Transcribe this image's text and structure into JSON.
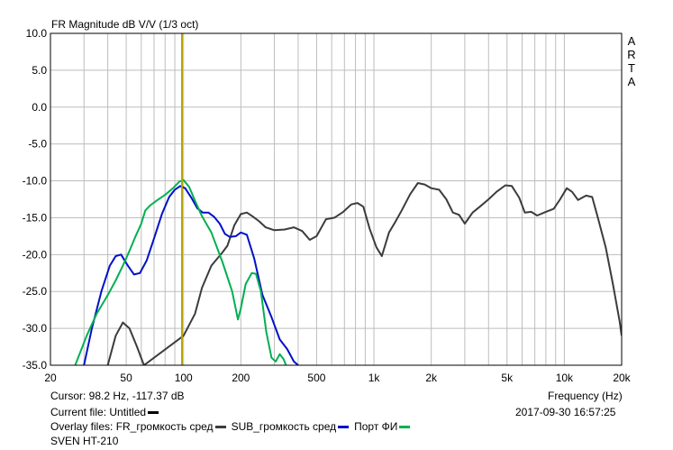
{
  "colors": {
    "background": "#ffffff",
    "grid": "#bdbdbd",
    "frame": "#000000",
    "cursor": "#b3a300",
    "series_black": "#3c3c3c",
    "series_blue": "#0010c8",
    "series_green": "#00b050"
  },
  "chart_data": {
    "type": "line",
    "title": "FR Magnitude dB V/V (1/3 oct)",
    "xlabel": "Frequency (Hz)",
    "ylabel": "",
    "xscale": "log",
    "xlim": [
      20,
      20000
    ],
    "ylim": [
      -35,
      10
    ],
    "y_ticks": [
      "10.0",
      "5.0",
      "0.0",
      "-5.0",
      "-10.0",
      "-15.0",
      "-20.0",
      "-25.0",
      "-30.0",
      "-35.0"
    ],
    "x_ticks": [
      {
        "v": 20,
        "label": "20"
      },
      {
        "v": 50,
        "label": "50"
      },
      {
        "v": 100,
        "label": "100"
      },
      {
        "v": 200,
        "label": "200"
      },
      {
        "v": 500,
        "label": "500"
      },
      {
        "v": 1000,
        "label": "1k"
      },
      {
        "v": 2000,
        "label": "2k"
      },
      {
        "v": 5000,
        "label": "5k"
      },
      {
        "v": 10000,
        "label": "10k"
      },
      {
        "v": 20000,
        "label": "20k"
      }
    ],
    "grid": true,
    "watermark": [
      "A",
      "R",
      "T",
      "A"
    ],
    "cursor_freq": 98.2,
    "series": [
      {
        "colorKey": "series_black",
        "points": [
          [
            40,
            -35
          ],
          [
            44,
            -31
          ],
          [
            48,
            -29.2
          ],
          [
            52,
            -30
          ],
          [
            57,
            -32.5
          ],
          [
            62,
            -35
          ],
          [
            100,
            -31
          ],
          [
            115,
            -28
          ],
          [
            125,
            -24.5
          ],
          [
            140,
            -21.5
          ],
          [
            160,
            -19.7
          ],
          [
            170,
            -18.8
          ],
          [
            185,
            -16
          ],
          [
            200,
            -14.5
          ],
          [
            215,
            -14.3
          ],
          [
            230,
            -14.8
          ],
          [
            250,
            -15.5
          ],
          [
            270,
            -16.3
          ],
          [
            300,
            -16.7
          ],
          [
            340,
            -16.6
          ],
          [
            380,
            -16.3
          ],
          [
            420,
            -16.8
          ],
          [
            460,
            -18
          ],
          [
            500,
            -17.5
          ],
          [
            560,
            -15.2
          ],
          [
            620,
            -15
          ],
          [
            690,
            -14.2
          ],
          [
            760,
            -13.2
          ],
          [
            820,
            -13
          ],
          [
            880,
            -13.5
          ],
          [
            950,
            -16.5
          ],
          [
            1030,
            -19
          ],
          [
            1100,
            -20.2
          ],
          [
            1200,
            -17
          ],
          [
            1300,
            -15.5
          ],
          [
            1400,
            -14
          ],
          [
            1550,
            -11.8
          ],
          [
            1700,
            -10.3
          ],
          [
            1850,
            -10.5
          ],
          [
            2000,
            -11
          ],
          [
            2200,
            -11.2
          ],
          [
            2400,
            -12.5
          ],
          [
            2600,
            -14.3
          ],
          [
            2800,
            -14.6
          ],
          [
            3000,
            -15.8
          ],
          [
            3300,
            -14.3
          ],
          [
            3600,
            -13.5
          ],
          [
            4000,
            -12.5
          ],
          [
            4400,
            -11.5
          ],
          [
            4900,
            -10.6
          ],
          [
            5300,
            -10.7
          ],
          [
            5800,
            -12.3
          ],
          [
            6200,
            -14.3
          ],
          [
            6700,
            -14.2
          ],
          [
            7200,
            -14.7
          ],
          [
            8000,
            -14.2
          ],
          [
            8800,
            -13.8
          ],
          [
            9500,
            -12.5
          ],
          [
            10300,
            -11
          ],
          [
            11000,
            -11.5
          ],
          [
            11800,
            -12.6
          ],
          [
            13000,
            -12
          ],
          [
            14000,
            -12.2
          ],
          [
            15000,
            -15
          ],
          [
            16500,
            -19
          ],
          [
            18000,
            -24
          ],
          [
            19500,
            -29
          ],
          [
            20000,
            -31
          ]
        ]
      },
      {
        "colorKey": "series_blue",
        "points": [
          [
            30,
            -35
          ],
          [
            33,
            -30
          ],
          [
            37,
            -25
          ],
          [
            41,
            -21.5
          ],
          [
            44,
            -20.2
          ],
          [
            47,
            -20
          ],
          [
            51,
            -21.5
          ],
          [
            55,
            -22.7
          ],
          [
            59,
            -22.5
          ],
          [
            64,
            -20.8
          ],
          [
            70,
            -17.8
          ],
          [
            77,
            -14.5
          ],
          [
            84,
            -12.2
          ],
          [
            90,
            -11.2
          ],
          [
            96,
            -10.7
          ],
          [
            102,
            -11
          ],
          [
            110,
            -12.3
          ],
          [
            118,
            -13.7
          ],
          [
            126,
            -14.3
          ],
          [
            135,
            -14.3
          ],
          [
            145,
            -14.9
          ],
          [
            155,
            -15.8
          ],
          [
            165,
            -17.2
          ],
          [
            175,
            -17.6
          ],
          [
            188,
            -17.5
          ],
          [
            200,
            -17
          ],
          [
            215,
            -17.3
          ],
          [
            235,
            -20.5
          ],
          [
            260,
            -25.5
          ],
          [
            290,
            -28.5
          ],
          [
            320,
            -31.5
          ],
          [
            350,
            -32.8
          ],
          [
            380,
            -34.5
          ],
          [
            400,
            -35
          ]
        ]
      },
      {
        "colorKey": "series_green",
        "points": [
          [
            27,
            -35
          ],
          [
            31,
            -31
          ],
          [
            35,
            -28
          ],
          [
            40,
            -25.5
          ],
          [
            44,
            -23.5
          ],
          [
            48,
            -21.5
          ],
          [
            52,
            -19.5
          ],
          [
            56,
            -17.5
          ],
          [
            60,
            -15.8
          ],
          [
            63,
            -14
          ],
          [
            67,
            -13.3
          ],
          [
            73,
            -12.6
          ],
          [
            80,
            -11.9
          ],
          [
            88,
            -11
          ],
          [
            95,
            -10.1
          ],
          [
            100,
            -9.9
          ],
          [
            107,
            -10.8
          ],
          [
            115,
            -12.7
          ],
          [
            125,
            -14.8
          ],
          [
            140,
            -17
          ],
          [
            160,
            -21
          ],
          [
            180,
            -25
          ],
          [
            193,
            -28.8
          ],
          [
            200,
            -27.3
          ],
          [
            212,
            -24
          ],
          [
            228,
            -22.5
          ],
          [
            240,
            -22.6
          ],
          [
            255,
            -25
          ],
          [
            272,
            -30.5
          ],
          [
            290,
            -34
          ],
          [
            305,
            -34.5
          ],
          [
            320,
            -33.5
          ],
          [
            336,
            -34.2
          ],
          [
            345,
            -35
          ]
        ]
      }
    ]
  },
  "info": {
    "cursor_line": "Cursor: 98.2 Hz, -117.37 dB",
    "current_file": "Current file: Untitled",
    "overlay_prefix": "Overlay files: ",
    "overlay_1": "FR_громкость сред",
    "overlay_2": "SUB_громкость сред",
    "overlay_3": "Порт ФИ",
    "device": "SVEN HT-210",
    "frequency_label": "Frequency (Hz)",
    "timestamp": "2017-09-30  16:57:25"
  }
}
